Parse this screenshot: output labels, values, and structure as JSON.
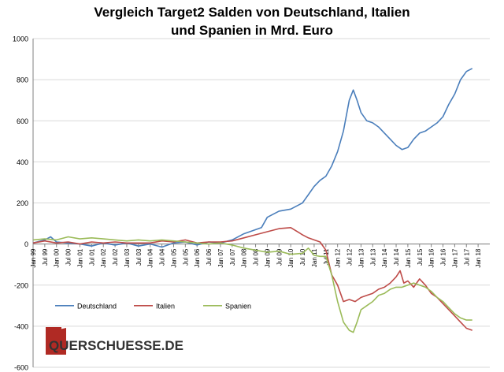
{
  "chart_data": {
    "type": "line",
    "title_line1": "Vergleich Target2 Salden von Deutschland, Italien",
    "title_line2": "und Spanien in Mrd. Euro",
    "xlabel": "",
    "ylabel": "",
    "ylim": [
      -600,
      1000
    ],
    "yticks": [
      -600,
      -400,
      -200,
      0,
      200,
      400,
      600,
      800,
      1000
    ],
    "xlim": [
      1999.0,
      2018.5
    ],
    "xticks": [
      "Jan 99",
      "Jul 99",
      "Jan 00",
      "Jul 00",
      "Jan 01",
      "Jul 01",
      "Jan 02",
      "Jul 02",
      "Jan 03",
      "Jul 03",
      "Jan 04",
      "Jul 04",
      "Jan 05",
      "Jul 05",
      "Jan 06",
      "Jul 06",
      "Jan 07",
      "Jul 07",
      "Jan 08",
      "Jul 08",
      "Jan 09",
      "Jul 09",
      "Jan 10",
      "Jul 10",
      "Jan 11",
      "Jul 11",
      "Jan 12",
      "Jul 12",
      "Jan 13",
      "Jul 13",
      "Jan 14",
      "Jul 14",
      "Jan 15",
      "Jul 15",
      "Jan 16",
      "Jul 16",
      "Jan 17",
      "Jul 17",
      "Jan 18"
    ],
    "grid": "horizontal",
    "legend_position": "bottom-left",
    "series": [
      {
        "name": "Deutschland",
        "color": "#4a7ebb",
        "points": [
          [
            1999.0,
            5
          ],
          [
            1999.5,
            20
          ],
          [
            1999.75,
            35
          ],
          [
            2000.0,
            10
          ],
          [
            2000.5,
            5
          ],
          [
            2001.0,
            0
          ],
          [
            2001.5,
            -10
          ],
          [
            2002.0,
            5
          ],
          [
            2002.5,
            -5
          ],
          [
            2003.0,
            5
          ],
          [
            2003.5,
            -10
          ],
          [
            2004.0,
            0
          ],
          [
            2004.5,
            -15
          ],
          [
            2005.0,
            5
          ],
          [
            2005.5,
            10
          ],
          [
            2006.0,
            -5
          ],
          [
            2006.5,
            10
          ],
          [
            2007.0,
            5
          ],
          [
            2007.5,
            20
          ],
          [
            2008.0,
            50
          ],
          [
            2008.5,
            70
          ],
          [
            2008.75,
            80
          ],
          [
            2009.0,
            130
          ],
          [
            2009.5,
            160
          ],
          [
            2010.0,
            170
          ],
          [
            2010.5,
            200
          ],
          [
            2010.75,
            240
          ],
          [
            2011.0,
            280
          ],
          [
            2011.25,
            310
          ],
          [
            2011.5,
            330
          ],
          [
            2011.75,
            380
          ],
          [
            2012.0,
            450
          ],
          [
            2012.25,
            550
          ],
          [
            2012.5,
            700
          ],
          [
            2012.67,
            750
          ],
          [
            2012.83,
            700
          ],
          [
            2013.0,
            640
          ],
          [
            2013.25,
            600
          ],
          [
            2013.5,
            590
          ],
          [
            2013.75,
            570
          ],
          [
            2014.0,
            540
          ],
          [
            2014.25,
            510
          ],
          [
            2014.5,
            480
          ],
          [
            2014.75,
            460
          ],
          [
            2015.0,
            470
          ],
          [
            2015.25,
            510
          ],
          [
            2015.5,
            540
          ],
          [
            2015.75,
            550
          ],
          [
            2016.0,
            570
          ],
          [
            2016.25,
            590
          ],
          [
            2016.5,
            620
          ],
          [
            2016.75,
            680
          ],
          [
            2017.0,
            730
          ],
          [
            2017.25,
            800
          ],
          [
            2017.5,
            840
          ],
          [
            2017.75,
            855
          ]
        ]
      },
      {
        "name": "Italien",
        "color": "#be4b48",
        "points": [
          [
            1999.0,
            5
          ],
          [
            1999.5,
            15
          ],
          [
            2000.0,
            5
          ],
          [
            2000.5,
            10
          ],
          [
            2001.0,
            0
          ],
          [
            2001.5,
            10
          ],
          [
            2002.0,
            5
          ],
          [
            2002.5,
            10
          ],
          [
            2003.0,
            5
          ],
          [
            2003.5,
            5
          ],
          [
            2004.0,
            5
          ],
          [
            2004.5,
            15
          ],
          [
            2005.0,
            10
          ],
          [
            2005.5,
            20
          ],
          [
            2006.0,
            5
          ],
          [
            2006.5,
            10
          ],
          [
            2007.0,
            10
          ],
          [
            2007.5,
            15
          ],
          [
            2008.0,
            30
          ],
          [
            2008.5,
            45
          ],
          [
            2009.0,
            60
          ],
          [
            2009.5,
            75
          ],
          [
            2010.0,
            80
          ],
          [
            2010.5,
            45
          ],
          [
            2010.75,
            30
          ],
          [
            2011.0,
            20
          ],
          [
            2011.25,
            10
          ],
          [
            2011.5,
            -30
          ],
          [
            2011.75,
            -150
          ],
          [
            2012.0,
            -200
          ],
          [
            2012.25,
            -280
          ],
          [
            2012.5,
            -270
          ],
          [
            2012.75,
            -280
          ],
          [
            2013.0,
            -260
          ],
          [
            2013.25,
            -250
          ],
          [
            2013.5,
            -240
          ],
          [
            2013.75,
            -220
          ],
          [
            2014.0,
            -210
          ],
          [
            2014.25,
            -190
          ],
          [
            2014.5,
            -160
          ],
          [
            2014.67,
            -130
          ],
          [
            2014.83,
            -190
          ],
          [
            2015.0,
            -180
          ],
          [
            2015.25,
            -210
          ],
          [
            2015.5,
            -170
          ],
          [
            2015.75,
            -200
          ],
          [
            2016.0,
            -240
          ],
          [
            2016.25,
            -260
          ],
          [
            2016.5,
            -290
          ],
          [
            2016.75,
            -320
          ],
          [
            2017.0,
            -350
          ],
          [
            2017.25,
            -380
          ],
          [
            2017.5,
            -410
          ],
          [
            2017.75,
            -420
          ]
        ]
      },
      {
        "name": "Spanien",
        "color": "#9bbb59",
        "points": [
          [
            1999.0,
            20
          ],
          [
            1999.5,
            25
          ],
          [
            2000.0,
            20
          ],
          [
            2000.5,
            35
          ],
          [
            2001.0,
            25
          ],
          [
            2001.5,
            30
          ],
          [
            2002.0,
            25
          ],
          [
            2002.5,
            20
          ],
          [
            2003.0,
            15
          ],
          [
            2003.5,
            20
          ],
          [
            2004.0,
            15
          ],
          [
            2004.5,
            20
          ],
          [
            2005.0,
            15
          ],
          [
            2005.5,
            10
          ],
          [
            2006.0,
            5
          ],
          [
            2006.5,
            0
          ],
          [
            2007.0,
            5
          ],
          [
            2007.5,
            -5
          ],
          [
            2008.0,
            -20
          ],
          [
            2008.5,
            -30
          ],
          [
            2009.0,
            -40
          ],
          [
            2009.5,
            -35
          ],
          [
            2010.0,
            -50
          ],
          [
            2010.5,
            -45
          ],
          [
            2010.75,
            -20
          ],
          [
            2011.0,
            -55
          ],
          [
            2011.25,
            -60
          ],
          [
            2011.5,
            -60
          ],
          [
            2011.75,
            -150
          ],
          [
            2012.0,
            -280
          ],
          [
            2012.25,
            -380
          ],
          [
            2012.5,
            -420
          ],
          [
            2012.67,
            -430
          ],
          [
            2012.83,
            -380
          ],
          [
            2013.0,
            -320
          ],
          [
            2013.25,
            -300
          ],
          [
            2013.5,
            -280
          ],
          [
            2013.75,
            -250
          ],
          [
            2014.0,
            -240
          ],
          [
            2014.25,
            -220
          ],
          [
            2014.5,
            -210
          ],
          [
            2014.75,
            -210
          ],
          [
            2015.0,
            -200
          ],
          [
            2015.25,
            -190
          ],
          [
            2015.5,
            -200
          ],
          [
            2015.75,
            -210
          ],
          [
            2016.0,
            -230
          ],
          [
            2016.25,
            -260
          ],
          [
            2016.5,
            -280
          ],
          [
            2016.75,
            -310
          ],
          [
            2017.0,
            -340
          ],
          [
            2017.25,
            -360
          ],
          [
            2017.5,
            -370
          ],
          [
            2017.75,
            -370
          ]
        ]
      }
    ]
  },
  "watermark": {
    "text": "QUERSCHUESSE.DE",
    "box_color": "#b02a24"
  }
}
